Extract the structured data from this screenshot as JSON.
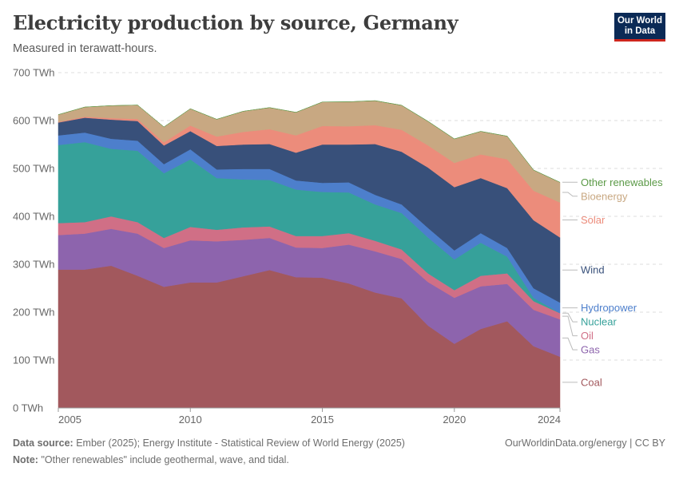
{
  "header": {
    "title": "Electricity production by source, Germany",
    "subtitle": "Measured in terawatt-hours."
  },
  "logo": {
    "line1": "Our World",
    "line2": "in Data",
    "bg": "#0b2a56",
    "accent": "#ce261e"
  },
  "footer": {
    "source_label": "Data source:",
    "source_text": "Ember (2025); Energy Institute - Statistical Review of World Energy (2025)",
    "note_label": "Note:",
    "note_text": "\"Other renewables\" include geothermal, wave, and tidal.",
    "url": "OurWorldinData.org/energy | CC BY"
  },
  "chart_data": {
    "type": "area",
    "stacked": true,
    "x": [
      2005,
      2006,
      2007,
      2008,
      2009,
      2010,
      2011,
      2012,
      2013,
      2014,
      2015,
      2016,
      2017,
      2018,
      2019,
      2020,
      2021,
      2022,
      2023,
      2024
    ],
    "x_ticks": [
      2005,
      2010,
      2015,
      2020,
      2024
    ],
    "x_tick_labels": [
      "2005",
      "2010",
      "2015",
      "2020",
      "2024"
    ],
    "y_ticks": [
      0,
      100,
      200,
      300,
      400,
      500,
      600,
      700
    ],
    "y_tick_labels": [
      "0 TWh",
      "100 TWh",
      "200 TWh",
      "300 TWh",
      "400 TWh",
      "500 TWh",
      "600 TWh",
      "700 TWh"
    ],
    "ylim": [
      0,
      700
    ],
    "grid": "horizontal dashed",
    "legend": "right, inline labels",
    "series": [
      {
        "name": "Coal",
        "color": "#a2585d",
        "values": [
          289,
          289,
          297,
          276,
          253,
          262,
          262,
          275,
          288,
          273,
          272,
          260,
          241,
          229,
          172,
          134,
          165,
          181,
          129,
          107
        ]
      },
      {
        "name": "Gas",
        "color": "#8d64ad",
        "values": [
          72,
          75,
          77,
          88,
          81,
          88,
          86,
          76,
          67,
          62,
          62,
          81,
          86,
          82,
          91,
          96,
          89,
          78,
          76,
          78
        ]
      },
      {
        "name": "Oil",
        "color": "#d06f86",
        "values": [
          25,
          24,
          26,
          24,
          21,
          28,
          24,
          26,
          24,
          24,
          25,
          24,
          22,
          20,
          18,
          16,
          22,
          22,
          18,
          13
        ]
      },
      {
        "name": "Nuclear",
        "color": "#36a19a",
        "values": [
          163,
          167,
          141,
          149,
          135,
          141,
          108,
          100,
          97,
          97,
          92,
          85,
          76,
          76,
          75,
          64,
          69,
          35,
          7,
          0
        ]
      },
      {
        "name": "Hydropower",
        "color": "#4d7fcc",
        "values": [
          20,
          20,
          21,
          21,
          19,
          21,
          18,
          22,
          23,
          19,
          19,
          21,
          20,
          18,
          20,
          19,
          20,
          18,
          20,
          22
        ]
      },
      {
        "name": "Wind",
        "color": "#38507a",
        "values": [
          27,
          31,
          40,
          41,
          39,
          38,
          49,
          51,
          52,
          58,
          80,
          79,
          106,
          110,
          126,
          132,
          115,
          125,
          142,
          136
        ]
      },
      {
        "name": "Solar",
        "color": "#ec8c7b",
        "values": [
          1.3,
          2.2,
          3.1,
          4.4,
          6.6,
          11.7,
          19.6,
          26.4,
          31,
          36.1,
          38.7,
          38.1,
          39.4,
          45.8,
          46.4,
          50.6,
          49.3,
          60.3,
          61.6,
          73
        ]
      },
      {
        "name": "Bioenergy",
        "color": "#c8a882",
        "values": [
          15,
          20,
          26,
          29,
          32,
          35,
          36,
          43,
          45,
          48,
          50,
          51,
          51,
          51,
          50,
          50,
          48,
          48,
          43,
          42
        ]
      },
      {
        "name": "Other renewables",
        "color": "#5b9a47",
        "values": [
          0,
          0,
          0,
          0,
          0,
          0,
          0,
          0,
          0.1,
          0.1,
          0.1,
          0.2,
          0.2,
          0.2,
          0.2,
          0.2,
          0.2,
          0.2,
          0.2,
          0.2
        ]
      }
    ]
  }
}
